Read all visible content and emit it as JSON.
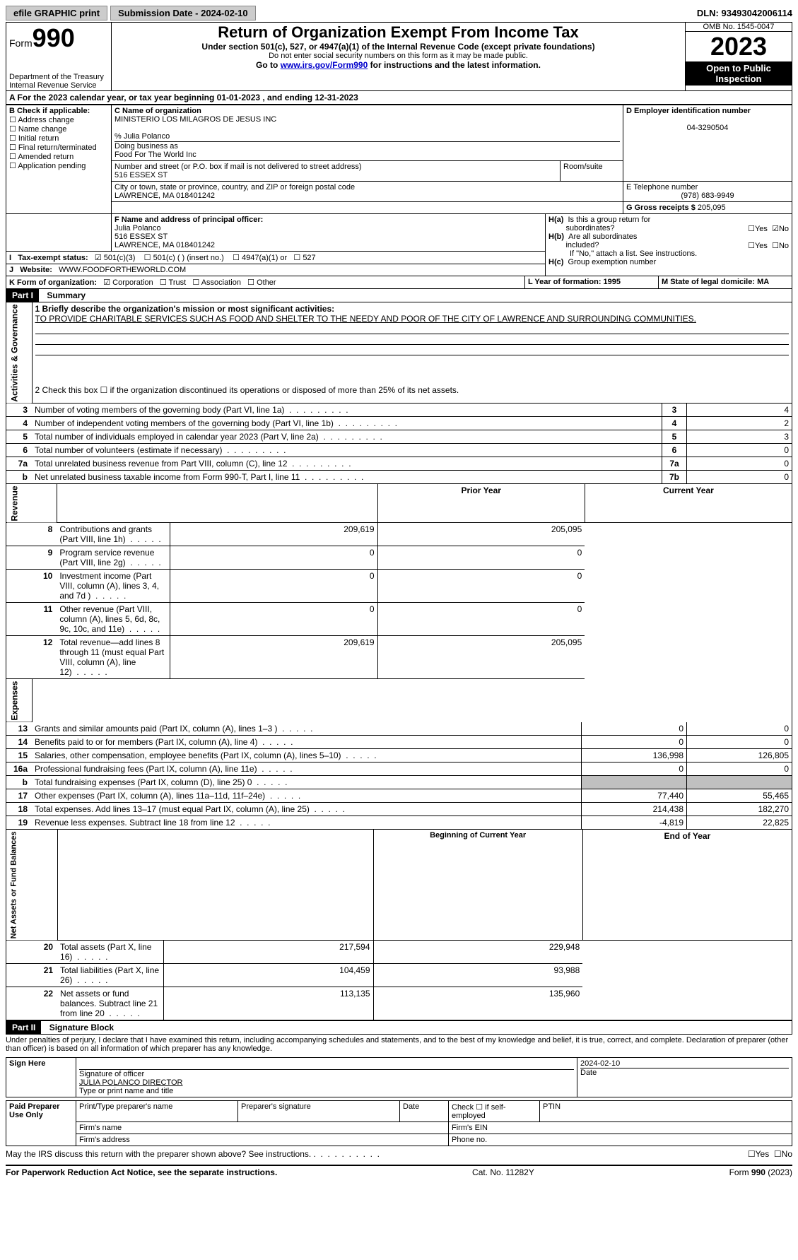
{
  "topbar": {
    "efile_label": "efile GRAPHIC print",
    "submission_label": "Submission Date - 2024-02-10",
    "dln_label": "DLN: 93493042006114"
  },
  "header": {
    "form_label": "Form",
    "form_number": "990",
    "dept_label": "Department of the Treasury\nInternal Revenue Service",
    "title": "Return of Organization Exempt From Income Tax",
    "subtitle1": "Under section 501(c), 527, or 4947(a)(1) of the Internal Revenue Code (except private foundations)",
    "subtitle2": "Do not enter social security numbers on this form as it may be made public.",
    "subtitle3_pre": "Go to ",
    "subtitle3_link": "www.irs.gov/Form990",
    "subtitle3_post": " for instructions and the latest information.",
    "omb": "OMB No. 1545-0047",
    "year": "2023",
    "inspection": "Open to Public Inspection"
  },
  "line_a": "A For the 2023 calendar year, or tax year beginning 01-01-2023    , and ending 12-31-2023",
  "box_b": {
    "header": "B Check if applicable:",
    "items": [
      "Address change",
      "Name change",
      "Initial return",
      "Final return/terminated",
      "Amended return",
      "Application pending"
    ]
  },
  "box_c": {
    "header": "C Name of organization",
    "org_name": "MINISTERIO LOS MILAGROS DE JESUS INC",
    "care_of": "% Julia Polanco",
    "dba_label": "Doing business as",
    "dba": "Food For The World Inc",
    "street_label": "Number and street (or P.O. box if mail is not delivered to street address)",
    "street": "516 ESSEX ST",
    "room_label": "Room/suite",
    "city_label": "City or town, state or province, country, and ZIP or foreign postal code",
    "city": "LAWRENCE, MA  018401242"
  },
  "box_d": {
    "label": "D Employer identification number",
    "value": "04-3290504"
  },
  "box_e": {
    "label": "E Telephone number",
    "value": "(978) 683-9949"
  },
  "box_g": {
    "label": "G Gross receipts $",
    "value": "205,095"
  },
  "box_f": {
    "label": "F Name and address of principal officer:",
    "name": "Julia Polanco",
    "street": "516 ESSEX ST",
    "city": "LAWRENCE, MA  018401242"
  },
  "box_h": {
    "ha_label": "H(a)  Is this a group return for subordinates?",
    "hb_label": "H(b)  Are all subordinates included?",
    "hb_note": "If \"No,\" attach a list. See instructions.",
    "hc_label": "H(c)  Group exemption number",
    "yes": "Yes",
    "no": "No"
  },
  "box_i": {
    "label": "I   Tax-exempt status:",
    "opt1": "501(c)(3)",
    "opt2": "501(c) (  ) (insert no.)",
    "opt3": "4947(a)(1) or",
    "opt4": "527"
  },
  "box_j": {
    "label": "J   Website:",
    "value": "WWW.FOODFORTHEWORLD.COM"
  },
  "box_k": {
    "label": "K Form of organization:",
    "opts": [
      "Corporation",
      "Trust",
      "Association",
      "Other"
    ]
  },
  "box_l": {
    "label": "L Year of formation: 1995"
  },
  "box_m": {
    "label": "M State of legal domicile: MA"
  },
  "part1": {
    "header_part": "Part I",
    "header_title": "Summary",
    "line1_label": "1   Briefly describe the organization's mission or most significant activities:",
    "line1_text": "TO PROVIDE CHARITABLE SERVICES SUCH AS FOOD AND SHELTER TO THE NEEDY AND POOR OF THE CITY OF LAWRENCE AND SURROUNDING COMMUNITIES.",
    "line2": "2   Check this box ☐ if the organization discontinued its operations or disposed of more than 25% of its net assets.",
    "governance_label": "Activities & Governance",
    "revenue_label": "Revenue",
    "expenses_label": "Expenses",
    "netassets_label": "Net Assets or Fund Balances",
    "rows_gov": [
      {
        "no": "3",
        "text": "Number of voting members of the governing body (Part VI, line 1a)",
        "ref": "3",
        "val": "4"
      },
      {
        "no": "4",
        "text": "Number of independent voting members of the governing body (Part VI, line 1b)",
        "ref": "4",
        "val": "2"
      },
      {
        "no": "5",
        "text": "Total number of individuals employed in calendar year 2023 (Part V, line 2a)",
        "ref": "5",
        "val": "3"
      },
      {
        "no": "6",
        "text": "Total number of volunteers (estimate if necessary)",
        "ref": "6",
        "val": "0"
      },
      {
        "no": "7a",
        "text": "Total unrelated business revenue from Part VIII, column (C), line 12",
        "ref": "7a",
        "val": "0"
      },
      {
        "no": "b",
        "text": "Net unrelated business taxable income from Form 990-T, Part I, line 11",
        "ref": "7b",
        "val": "0"
      }
    ],
    "twocol_header": {
      "prior": "Prior Year",
      "current": "Current Year"
    },
    "rows_rev": [
      {
        "no": "8",
        "text": "Contributions and grants (Part VIII, line 1h)",
        "prior": "209,619",
        "current": "205,095"
      },
      {
        "no": "9",
        "text": "Program service revenue (Part VIII, line 2g)",
        "prior": "0",
        "current": "0"
      },
      {
        "no": "10",
        "text": "Investment income (Part VIII, column (A), lines 3, 4, and 7d )",
        "prior": "0",
        "current": "0"
      },
      {
        "no": "11",
        "text": "Other revenue (Part VIII, column (A), lines 5, 6d, 8c, 9c, 10c, and 11e)",
        "prior": "0",
        "current": "0"
      },
      {
        "no": "12",
        "text": "Total revenue—add lines 8 through 11 (must equal Part VIII, column (A), line 12)",
        "prior": "209,619",
        "current": "205,095"
      }
    ],
    "rows_exp": [
      {
        "no": "13",
        "text": "Grants and similar amounts paid (Part IX, column (A), lines 1–3 )",
        "prior": "0",
        "current": "0"
      },
      {
        "no": "14",
        "text": "Benefits paid to or for members (Part IX, column (A), line 4)",
        "prior": "0",
        "current": "0"
      },
      {
        "no": "15",
        "text": "Salaries, other compensation, employee benefits (Part IX, column (A), lines 5–10)",
        "prior": "136,998",
        "current": "126,805"
      },
      {
        "no": "16a",
        "text": "Professional fundraising fees (Part IX, column (A), line 11e)",
        "prior": "0",
        "current": "0"
      },
      {
        "no": "b",
        "text": "Total fundraising expenses (Part IX, column (D), line 25) 0",
        "prior": "",
        "current": "",
        "shaded": true
      },
      {
        "no": "17",
        "text": "Other expenses (Part IX, column (A), lines 11a–11d, 11f–24e)",
        "prior": "77,440",
        "current": "55,465"
      },
      {
        "no": "18",
        "text": "Total expenses. Add lines 13–17 (must equal Part IX, column (A), line 25)",
        "prior": "214,438",
        "current": "182,270"
      },
      {
        "no": "19",
        "text": "Revenue less expenses. Subtract line 18 from line 12",
        "prior": "-4,819",
        "current": "22,825"
      }
    ],
    "twocol_header2": {
      "prior": "Beginning of Current Year",
      "current": "End of Year"
    },
    "rows_net": [
      {
        "no": "20",
        "text": "Total assets (Part X, line 16)",
        "prior": "217,594",
        "current": "229,948"
      },
      {
        "no": "21",
        "text": "Total liabilities (Part X, line 26)",
        "prior": "104,459",
        "current": "93,988"
      },
      {
        "no": "22",
        "text": "Net assets or fund balances. Subtract line 21 from line 20",
        "prior": "113,135",
        "current": "135,960"
      }
    ]
  },
  "part2": {
    "header_part": "Part II",
    "header_title": "Signature Block",
    "declaration": "Under penalties of perjury, I declare that I have examined this return, including accompanying schedules and statements, and to the best of my knowledge and belief, it is true, correct, and complete. Declaration of preparer (other than officer) is based on all information of which preparer has any knowledge."
  },
  "sign_here": {
    "label": "Sign Here",
    "sig_officer_label": "Signature of officer",
    "officer_name": "JULIA POLANCO  DIRECTOR",
    "type_title_label": "Type or print name and title",
    "date_label": "Date",
    "date_value": "2024-02-10"
  },
  "paid_prep": {
    "label": "Paid Preparer Use Only",
    "print_name": "Print/Type preparer's name",
    "prep_sig": "Preparer's signature",
    "date": "Date",
    "check_self": "Check ☐ if self-employed",
    "ptin": "PTIN",
    "firm_name": "Firm's name",
    "firm_ein": "Firm's EIN",
    "firm_addr": "Firm's address",
    "phone": "Phone no."
  },
  "may_irs": "May the IRS discuss this return with the preparer shown above? See instructions.",
  "footer": {
    "left": "For Paperwork Reduction Act Notice, see the separate instructions.",
    "mid": "Cat. No. 11282Y",
    "right": "Form 990 (2023)"
  }
}
